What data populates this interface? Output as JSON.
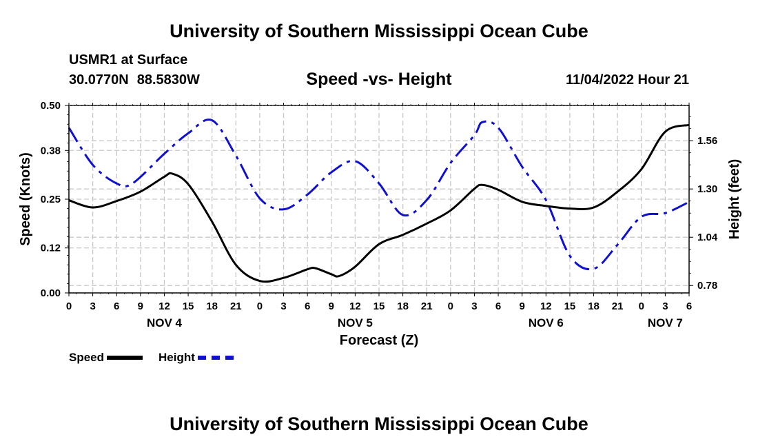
{
  "header": {
    "title": "University of Southern Mississippi Ocean Cube",
    "station": "USMR1 at Surface",
    "latitude": "30.0770N",
    "longitude": "88.5830W",
    "subtitle": "Speed -vs- Height",
    "datetime": "11/04/2022 Hour 21"
  },
  "footer": {
    "title": "University of Southern Mississippi Ocean Cube"
  },
  "legend": {
    "speed_label": "Speed",
    "height_label": "Height",
    "speed_color": "#000000",
    "height_color": "#1010d0"
  },
  "chart_data": {
    "type": "line",
    "title": "Speed -vs- Height",
    "xlabel": "Forecast (Z)",
    "ylabel_left": "Speed (Knots)",
    "ylabel_right": "Height (feet)",
    "x_range_hours": [
      0,
      78
    ],
    "x_tick_step_hours": 3,
    "x_tick_labels": [
      "0",
      "3",
      "6",
      "9",
      "12",
      "15",
      "18",
      "21",
      "0",
      "3",
      "6",
      "9",
      "12",
      "15",
      "18",
      "21",
      "0",
      "3",
      "6",
      "9",
      "12",
      "15",
      "18",
      "21",
      "0",
      "3",
      "6"
    ],
    "x_day_labels": [
      {
        "label": "NOV 4",
        "hour": 12
      },
      {
        "label": "NOV 5",
        "hour": 36
      },
      {
        "label": "NOV 6",
        "hour": 60
      },
      {
        "label": "NOV 7",
        "hour": 75
      }
    ],
    "y_left": {
      "min": 0,
      "max": 0.5,
      "ticks": [
        0.0,
        0.12,
        0.25,
        0.38,
        0.5
      ],
      "tick_labels": [
        "0.00",
        "0.12",
        "0.25",
        "0.38",
        "0.50"
      ]
    },
    "y_right": {
      "min": 0.74,
      "max": 1.75,
      "ticks": [
        0.78,
        1.04,
        1.3,
        1.56
      ],
      "tick_labels": [
        "0.78",
        "1.04",
        "1.30",
        "1.56"
      ]
    },
    "grid": true,
    "series": [
      {
        "name": "Speed",
        "axis": "left",
        "style": "solid",
        "color": "#000000",
        "x": [
          0,
          3,
          6,
          9,
          12,
          13,
          15,
          18,
          21,
          24,
          27,
          30,
          31,
          33,
          34,
          36,
          39,
          42,
          45,
          48,
          51,
          52,
          54,
          57,
          60,
          63,
          66,
          69,
          72,
          75,
          78
        ],
        "y": [
          0.247,
          0.228,
          0.245,
          0.27,
          0.31,
          0.318,
          0.29,
          0.19,
          0.075,
          0.032,
          0.04,
          0.063,
          0.066,
          0.05,
          0.045,
          0.07,
          0.13,
          0.155,
          0.185,
          0.22,
          0.278,
          0.288,
          0.275,
          0.243,
          0.232,
          0.225,
          0.228,
          0.27,
          0.33,
          0.43,
          0.448
        ]
      },
      {
        "name": "Height",
        "axis": "right",
        "style": "dashed",
        "color": "#1010d0",
        "x": [
          0,
          3,
          6,
          8,
          12,
          15,
          18,
          21,
          24,
          27,
          30,
          33,
          36,
          39,
          42,
          45,
          48,
          51,
          52,
          54,
          57,
          60,
          63,
          66,
          69,
          72,
          75,
          78
        ],
        "y": [
          1.63,
          1.43,
          1.33,
          1.33,
          1.49,
          1.6,
          1.67,
          1.48,
          1.25,
          1.19,
          1.27,
          1.39,
          1.45,
          1.33,
          1.16,
          1.24,
          1.44,
          1.59,
          1.66,
          1.63,
          1.42,
          1.24,
          0.94,
          0.87,
          1.0,
          1.15,
          1.17,
          1.23
        ]
      }
    ]
  }
}
